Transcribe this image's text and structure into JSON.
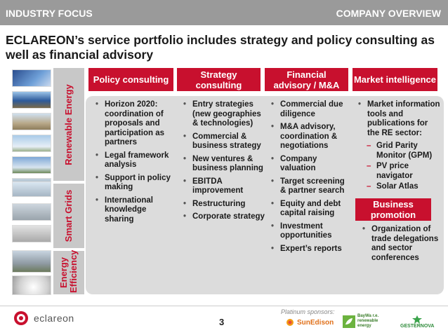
{
  "header": {
    "left_title": "INDUSTRY FOCUS",
    "right_title": "COMPANY OVERVIEW",
    "bar_color": "#9a9a9a"
  },
  "headline": "ECLAREON’s service portfolio includes strategy and policy consulting as well as financial advisory",
  "accent_color": "#c8102e",
  "side_tabs": [
    {
      "label": "Renewable Energy"
    },
    {
      "label": "Smart Grids"
    },
    {
      "label": "Energy Efficiency"
    }
  ],
  "columns": [
    {
      "title": "Policy consulting",
      "items": [
        "Horizon 2020: coordination of proposals and participation as partners",
        "Legal framework analysis",
        "Support in policy making",
        "International knowledge sharing"
      ]
    },
    {
      "title": "Strategy consulting",
      "items": [
        "Entry strategies (new geographies & technologies)",
        "Commercial & business strategy",
        "New ventures & business planning",
        "EBITDA improvement",
        "Restructuring",
        "Corporate strategy"
      ]
    },
    {
      "title": "Financial advisory / M&A",
      "items": [
        "Commercial due diligence",
        "M&A advisory, coordination & negotiations",
        "Company valuation",
        "Target screening & partner search",
        "Equity and debt capital raising",
        "Investment opportunities",
        "Expert’s reports"
      ]
    },
    {
      "title": "Market intelligence",
      "items": [
        "Market information tools and publications for the RE sector:"
      ],
      "subitems": [
        "Grid Parity Monitor (GPM)",
        "PV price navigator",
        "Solar Atlas"
      ]
    }
  ],
  "business_promotion": {
    "title": "Business promotion",
    "items": [
      "Organization of trade delegations and sector conferences"
    ]
  },
  "footer": {
    "logo_text": "eclareon",
    "page_number": "3",
    "sponsors_label": "Platinum sponsors:",
    "sponsors": [
      {
        "name": "SunEdison",
        "icon": "sun-icon"
      },
      {
        "name": "BayWa r.e. renewable energy",
        "icon": "leaf-icon"
      },
      {
        "name": "GESTERNOVA",
        "icon": "star-icon"
      }
    ]
  }
}
